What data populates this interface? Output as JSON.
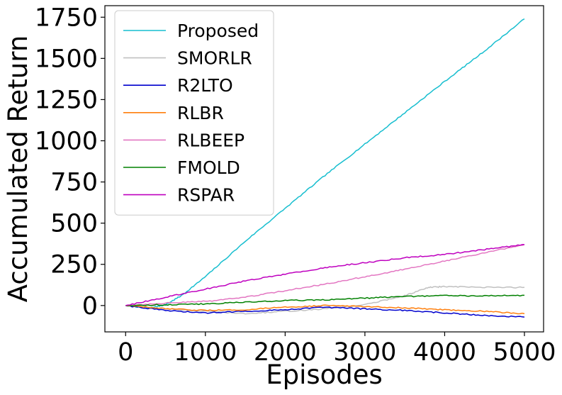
{
  "chart_data": {
    "type": "line",
    "title": "",
    "xlabel": "Episodes",
    "ylabel": "Accumulated Return",
    "xlim": [
      -260,
      5240
    ],
    "ylim": [
      -160,
      1820
    ],
    "xticks": [
      0,
      1000,
      2000,
      3000,
      4000,
      5000
    ],
    "xtick_labels": [
      "0",
      "1000",
      "2000",
      "3000",
      "4000",
      "5000"
    ],
    "yticks": [
      0,
      250,
      500,
      750,
      1000,
      1250,
      1500,
      1750
    ],
    "ytick_labels": [
      "0",
      "250",
      "500",
      "750",
      "1000",
      "1250",
      "1500",
      "1750"
    ],
    "grid": false,
    "legend_position": "top-left",
    "series": [
      {
        "name": "Proposed",
        "color": "#17becf",
        "x": [
          0,
          300,
          500,
          700,
          1000,
          1500,
          2000,
          2500,
          3000,
          3500,
          4000,
          4500,
          5000
        ],
        "y": [
          0,
          -15,
          5,
          60,
          175,
          390,
          590,
          790,
          980,
          1170,
          1360,
          1545,
          1740
        ]
      },
      {
        "name": "SMORLR",
        "color": "#c0c0c0",
        "x": [
          0,
          500,
          1000,
          1500,
          2000,
          2500,
          3000,
          3500,
          3800,
          4000,
          4500,
          5000
        ],
        "y": [
          0,
          -20,
          -35,
          -50,
          -35,
          -20,
          5,
          60,
          110,
          115,
          110,
          110
        ]
      },
      {
        "name": "R2LTO",
        "color": "#0000cd",
        "x": [
          0,
          500,
          1000,
          1500,
          2000,
          2500,
          3000,
          3500,
          4000,
          4500,
          5000
        ],
        "y": [
          0,
          -30,
          -45,
          -35,
          -25,
          -10,
          -20,
          -30,
          -45,
          -60,
          -70
        ]
      },
      {
        "name": "RLBR",
        "color": "#ff7f0e",
        "x": [
          0,
          500,
          1000,
          1500,
          2000,
          2500,
          3000,
          3500,
          4000,
          4500,
          5000
        ],
        "y": [
          0,
          -20,
          -30,
          -25,
          -10,
          0,
          -5,
          -15,
          -25,
          -35,
          -50
        ]
      },
      {
        "name": "RLBEEP",
        "color": "#e377c2",
        "x": [
          0,
          500,
          1000,
          1500,
          2000,
          2500,
          3000,
          3500,
          4000,
          4500,
          5000
        ],
        "y": [
          0,
          15,
          25,
          50,
          90,
          130,
          175,
          220,
          270,
          320,
          370
        ]
      },
      {
        "name": "FMOLD",
        "color": "#008000",
        "x": [
          0,
          500,
          1000,
          1500,
          2000,
          2500,
          3000,
          3500,
          4000,
          4500,
          5000
        ],
        "y": [
          0,
          5,
          10,
          20,
          30,
          35,
          45,
          55,
          60,
          60,
          62
        ]
      },
      {
        "name": "RSPAR",
        "color": "#bf00bf",
        "x": [
          0,
          500,
          1000,
          1500,
          2000,
          2500,
          3000,
          3500,
          4000,
          4500,
          5000
        ],
        "y": [
          0,
          50,
          100,
          150,
          190,
          230,
          260,
          290,
          310,
          340,
          370
        ]
      }
    ]
  }
}
